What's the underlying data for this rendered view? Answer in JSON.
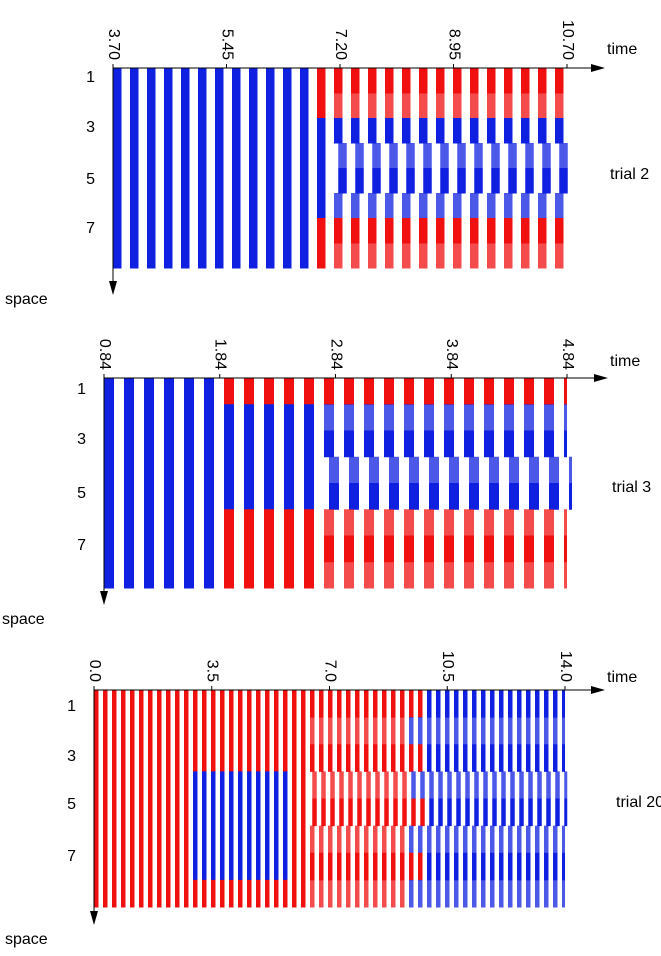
{
  "panels": [
    {
      "xlim": [
        3.7,
        10.7
      ],
      "xticks": [
        {
          "value": 3.7,
          "label": "3.70"
        },
        {
          "value": 5.45,
          "label": "5.45"
        },
        {
          "value": 7.2,
          "label": "7.20"
        },
        {
          "value": 8.95,
          "label": "8.95"
        },
        {
          "value": 10.7,
          "label": "10.70"
        }
      ],
      "x_label": "time",
      "y_label": "space",
      "rows": [
        "1",
        "3",
        "5",
        "7"
      ],
      "label": "trial 2"
    },
    {
      "xlim": [
        0.84,
        4.84
      ],
      "xticks": [
        0.84,
        1.84,
        2.84,
        3.84,
        4.84
      ],
      "x_label": "time",
      "y_label": "space",
      "rows": [
        "1",
        "3",
        "5",
        "7"
      ],
      "label": "trial 3"
    },
    {
      "xlim": [
        0.0,
        14.0
      ],
      "xticks": [
        {
          "value": 0.0,
          "label": "0.0"
        },
        3.5,
        {
          "value": 7.0,
          "label": "7.0"
        },
        10.5,
        {
          "value": 14.0,
          "label": "14.0"
        }
      ],
      "x_label": "time",
      "y_label": "space",
      "rows": [
        "1",
        "3",
        "5",
        "7"
      ],
      "label": "trial 20"
    }
  ]
}
